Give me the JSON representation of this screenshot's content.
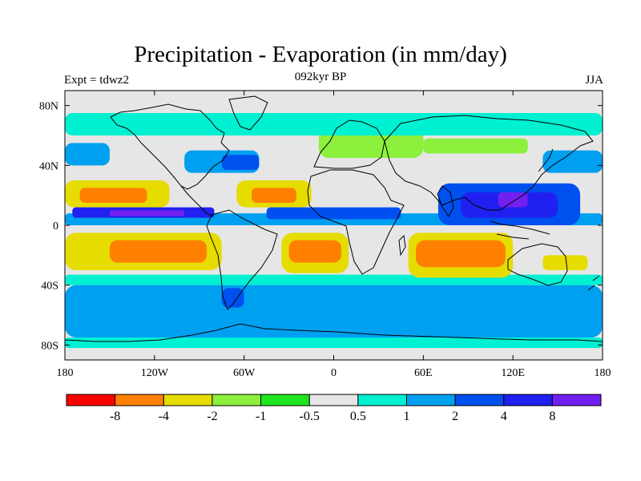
{
  "title": "Precipitation - Evaporation (in mm/day)",
  "subtitle_left": "Expt = tdwz2",
  "subtitle_center": "092kyr BP",
  "subtitle_right": "JJA",
  "map": {
    "lon_range": [
      -180,
      180
    ],
    "lat_range": [
      -90,
      90
    ],
    "background_color": "#e6e6e6",
    "coastline_color": "#000000"
  },
  "x_ticks": [
    {
      "value": -180,
      "label": "180"
    },
    {
      "value": -120,
      "label": "120W"
    },
    {
      "value": -60,
      "label": "60W"
    },
    {
      "value": 0,
      "label": "0"
    },
    {
      "value": 60,
      "label": "60E"
    },
    {
      "value": 120,
      "label": "120E"
    },
    {
      "value": 180,
      "label": "180"
    }
  ],
  "y_ticks": [
    {
      "value": 80,
      "label": "80N"
    },
    {
      "value": 40,
      "label": "40N"
    },
    {
      "value": 0,
      "label": "0"
    },
    {
      "value": -40,
      "label": "40S"
    },
    {
      "value": -80,
      "label": "80S"
    }
  ],
  "colorbar": {
    "colors": [
      "#ff0000",
      "#ff8000",
      "#e6dc00",
      "#8cf03c",
      "#1ee61e",
      "#e6e6e6",
      "#00f0d2",
      "#00a0f0",
      "#0050f0",
      "#2020f0",
      "#7020f0"
    ],
    "labels": [
      "-8",
      "-4",
      "-2",
      "-1",
      "-0.5",
      "0.5",
      "1",
      "2",
      "4",
      "8"
    ]
  },
  "fields": [
    {
      "color": "#00a0f0",
      "lon": [
        -180,
        180
      ],
      "lat": [
        -75,
        -40
      ]
    },
    {
      "color": "#00f0d2",
      "lon": [
        -180,
        180
      ],
      "lat": [
        -82,
        -75
      ]
    },
    {
      "color": "#00f0d2",
      "lon": [
        -180,
        180
      ],
      "lat": [
        -40,
        -33
      ]
    },
    {
      "color": "#e6dc00",
      "lon": [
        -180,
        -75
      ],
      "lat": [
        -30,
        -5
      ]
    },
    {
      "color": "#ff8000",
      "lon": [
        -150,
        -85
      ],
      "lat": [
        -25,
        -10
      ]
    },
    {
      "color": "#e6dc00",
      "lon": [
        -35,
        10
      ],
      "lat": [
        -32,
        -5
      ]
    },
    {
      "color": "#ff8000",
      "lon": [
        -30,
        5
      ],
      "lat": [
        -25,
        -10
      ]
    },
    {
      "color": "#e6dc00",
      "lon": [
        50,
        120
      ],
      "lat": [
        -35,
        -5
      ]
    },
    {
      "color": "#ff8000",
      "lon": [
        55,
        115
      ],
      "lat": [
        -28,
        -10
      ]
    },
    {
      "color": "#e6dc00",
      "lon": [
        -180,
        -110
      ],
      "lat": [
        12,
        30
      ]
    },
    {
      "color": "#ff8000",
      "lon": [
        -170,
        -125
      ],
      "lat": [
        15,
        25
      ]
    },
    {
      "color": "#e6dc00",
      "lon": [
        -65,
        -15
      ],
      "lat": [
        12,
        30
      ]
    },
    {
      "color": "#ff8000",
      "lon": [
        -55,
        -25
      ],
      "lat": [
        15,
        25
      ]
    },
    {
      "color": "#00a0f0",
      "lon": [
        -180,
        180
      ],
      "lat": [
        0,
        8
      ]
    },
    {
      "color": "#2020f0",
      "lon": [
        -175,
        -80
      ],
      "lat": [
        5,
        12
      ]
    },
    {
      "color": "#7020f0",
      "lon": [
        -150,
        -100
      ],
      "lat": [
        6,
        10
      ]
    },
    {
      "color": "#0050f0",
      "lon": [
        -45,
        45
      ],
      "lat": [
        4,
        12
      ]
    },
    {
      "color": "#0050f0",
      "lon": [
        70,
        165
      ],
      "lat": [
        0,
        28
      ]
    },
    {
      "color": "#2020f0",
      "lon": [
        85,
        150
      ],
      "lat": [
        5,
        22
      ]
    },
    {
      "color": "#7020f0",
      "lon": [
        110,
        130
      ],
      "lat": [
        12,
        22
      ]
    },
    {
      "color": "#00a0f0",
      "lon": [
        -100,
        -50
      ],
      "lat": [
        35,
        50
      ]
    },
    {
      "color": "#0050f0",
      "lon": [
        -75,
        -50
      ],
      "lat": [
        37,
        47
      ]
    },
    {
      "color": "#00a0f0",
      "lon": [
        140,
        180
      ],
      "lat": [
        35,
        50
      ]
    },
    {
      "color": "#8cf03c",
      "lon": [
        -10,
        60
      ],
      "lat": [
        45,
        65
      ]
    },
    {
      "color": "#8cf03c",
      "lon": [
        60,
        130
      ],
      "lat": [
        48,
        58
      ]
    },
    {
      "color": "#00f0d2",
      "lon": [
        -180,
        180
      ],
      "lat": [
        60,
        75
      ]
    },
    {
      "color": "#00a0f0",
      "lon": [
        -180,
        -150
      ],
      "lat": [
        40,
        55
      ]
    },
    {
      "color": "#0050f0",
      "lon": [
        -75,
        -60
      ],
      "lat": [
        -55,
        -42
      ]
    },
    {
      "color": "#e6dc00",
      "lon": [
        140,
        170
      ],
      "lat": [
        -30,
        -20
      ]
    }
  ]
}
